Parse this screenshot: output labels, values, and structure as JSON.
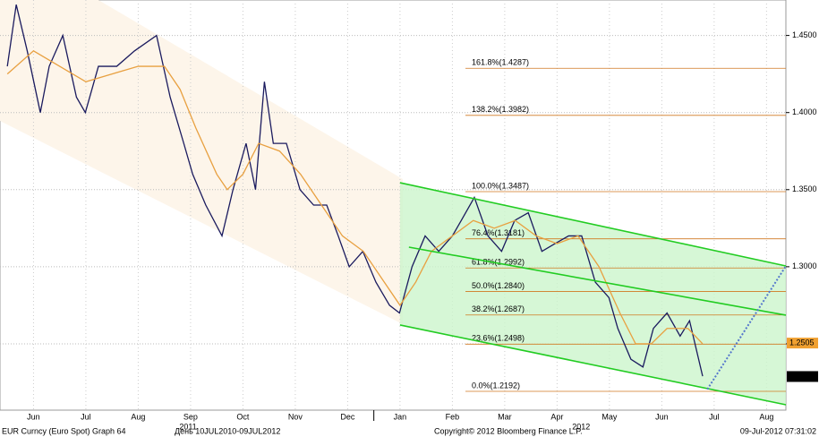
{
  "chart_data": {
    "type": "line",
    "xlim": [
      -0.14,
      14.87
    ],
    "ylim": [
      1.207,
      1.473
    ],
    "xticks": [
      {
        "value": 0.5,
        "label": "Jun"
      },
      {
        "value": 1.5,
        "label": "Jul"
      },
      {
        "value": 2.5,
        "label": "Aug"
      },
      {
        "value": 3.5,
        "label": "Sep"
      },
      {
        "value": 4.5,
        "label": "Oct"
      },
      {
        "value": 5.5,
        "label": "Nov"
      },
      {
        "value": 6.5,
        "label": "Dec"
      },
      {
        "value": 7.5,
        "label": "Jan"
      },
      {
        "value": 8.5,
        "label": "Feb"
      },
      {
        "value": 9.5,
        "label": "Mar"
      },
      {
        "value": 10.5,
        "label": "Apr"
      },
      {
        "value": 11.5,
        "label": "May"
      },
      {
        "value": 12.5,
        "label": "Jun"
      },
      {
        "value": 13.5,
        "label": "Jul"
      },
      {
        "value": 14.5,
        "label": "Aug"
      }
    ],
    "year_labels": [
      {
        "value": 3.45,
        "label": "2011"
      },
      {
        "value": 10.96,
        "label": "2012"
      }
    ],
    "yticks": [
      {
        "value": 1.25,
        "label": "1.2500"
      },
      {
        "value": 1.3,
        "label": "1.3000"
      },
      {
        "value": 1.35,
        "label": "1.3500"
      },
      {
        "value": 1.4,
        "label": "1.4000"
      },
      {
        "value": 1.45,
        "label": "1.4500"
      }
    ],
    "grid": true,
    "series": [
      {
        "color": "#1a1a5e",
        "x": [
          0,
          0.17,
          0.38,
          0.63,
          0.8,
          1.06,
          1.32,
          1.49,
          1.74,
          2.09,
          2.43,
          2.85,
          3.11,
          3.37,
          3.54,
          3.79,
          4.1,
          4.31,
          4.56,
          4.74,
          4.91,
          5.08,
          5.33,
          5.59,
          5.85,
          6.1,
          6.32,
          6.53,
          6.79,
          7.04,
          7.3,
          7.49,
          7.73,
          7.98,
          8.24,
          8.5,
          8.67,
          8.92,
          9.18,
          9.44,
          9.69,
          9.95,
          10.21,
          10.46,
          10.72,
          10.97,
          11.23,
          11.49,
          11.66,
          11.91,
          12.14,
          12.34,
          12.6,
          12.85,
          13.03,
          13.28
        ],
        "values": [
          1.43,
          1.47,
          1.44,
          1.4,
          1.43,
          1.45,
          1.41,
          1.4,
          1.43,
          1.43,
          1.44,
          1.45,
          1.41,
          1.38,
          1.36,
          1.34,
          1.32,
          1.35,
          1.38,
          1.35,
          1.42,
          1.38,
          1.38,
          1.35,
          1.34,
          1.34,
          1.32,
          1.3,
          1.31,
          1.29,
          1.275,
          1.27,
          1.3,
          1.32,
          1.31,
          1.32,
          1.33,
          1.345,
          1.32,
          1.31,
          1.33,
          1.335,
          1.31,
          1.315,
          1.32,
          1.32,
          1.29,
          1.28,
          1.26,
          1.24,
          1.235,
          1.26,
          1.27,
          1.255,
          1.265,
          1.229
        ]
      },
      {
        "color": "#e8a040",
        "x": [
          0,
          0.5,
          1,
          1.5,
          2,
          2.5,
          3,
          3.3,
          3.6,
          4,
          4.2,
          4.5,
          4.8,
          5.2,
          5.6,
          6,
          6.4,
          6.8,
          7.2,
          7.5,
          7.8,
          8.1,
          8.5,
          8.9,
          9.3,
          9.7,
          10.1,
          10.5,
          10.9,
          11.3,
          11.7,
          12,
          12.3,
          12.6,
          13,
          13.28
        ],
        "values": [
          1.425,
          1.44,
          1.43,
          1.42,
          1.425,
          1.43,
          1.43,
          1.415,
          1.39,
          1.36,
          1.35,
          1.36,
          1.38,
          1.375,
          1.36,
          1.34,
          1.32,
          1.31,
          1.29,
          1.275,
          1.29,
          1.31,
          1.32,
          1.33,
          1.325,
          1.33,
          1.32,
          1.315,
          1.32,
          1.3,
          1.27,
          1.25,
          1.25,
          1.26,
          1.26,
          1.25
        ]
      }
    ],
    "channels": [
      {
        "color": "#22cc22",
        "x": [
          7.5,
          14.87
        ],
        "values": [
          1.3545,
          1.3005
        ]
      },
      {
        "color": "#22cc22",
        "x": [
          7.67,
          14.87
        ],
        "values": [
          1.3127,
          1.2686
        ]
      },
      {
        "color": "#22cc22",
        "x": [
          7.5,
          14.87
        ],
        "values": [
          1.2622,
          1.2105
        ]
      }
    ],
    "channel_fill": "#ccf5cc",
    "projection": {
      "color": "#5577cc",
      "x": [
        13.37,
        14.87
      ],
      "values": [
        1.2205,
        1.3005
      ]
    },
    "fib_color": "#d07820",
    "fib_levels": [
      {
        "value": 1.4287,
        "label": "161.8%(1.4287)"
      },
      {
        "value": 1.3982,
        "label": "138.2%(1.3982)"
      },
      {
        "value": 1.3487,
        "label": "100.0%(1.3487)"
      },
      {
        "value": 1.3181,
        "label": "76.4%(1.3181)"
      },
      {
        "value": 1.2992,
        "label": "61.8%(1.2992)"
      },
      {
        "value": 1.284,
        "label": "50.0%(1.2840)"
      },
      {
        "value": 1.2687,
        "label": "38.2%(1.2687)"
      },
      {
        "value": 1.2498,
        "label": "23.6%(1.2498)"
      },
      {
        "value": 1.2192,
        "label": "0.0%(1.2192)"
      }
    ],
    "price_tags": [
      {
        "value": 1.2505,
        "color": "#f0a030"
      },
      {
        "value": 1.2288,
        "color": "#000000"
      }
    ],
    "footer": [
      "EUR Curncy (Euro Spot) Graph 64",
      "День 10JUL2010-09JUL2012",
      "Copyright© 2012 Bloomberg Finance L.P.",
      "09-Jul-2012 07:31:02"
    ]
  }
}
